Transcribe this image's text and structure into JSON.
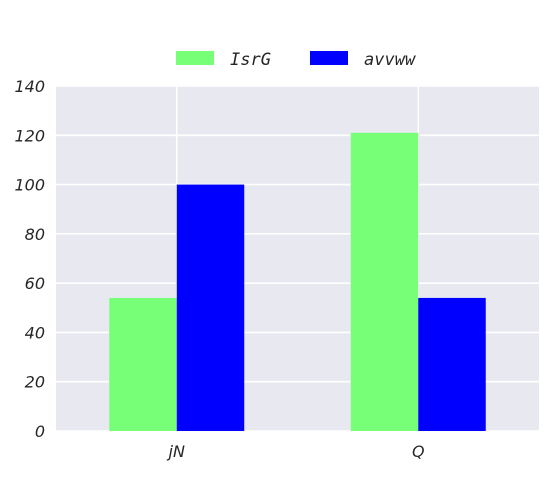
{
  "chart_data": {
    "type": "bar",
    "title": "",
    "xlabel": "",
    "ylabel": "",
    "categories": [
      "jN",
      "Q"
    ],
    "series": [
      {
        "name": "IsrG",
        "values": [
          54,
          121
        ],
        "color": "#77ff77"
      },
      {
        "name": "avvww",
        "values": [
          100,
          54
        ],
        "color": "#0000ff"
      }
    ],
    "ylim": [
      0,
      140
    ],
    "yticks": [
      0,
      20,
      40,
      60,
      80,
      100,
      120,
      140
    ],
    "ytick_labels": [
      "0",
      "20",
      "40",
      "60",
      "80",
      "100",
      "120",
      "140"
    ],
    "grid": true,
    "legend_position": "top-center",
    "plot_background": "#e8e8f0",
    "grid_color": "#ffffff"
  }
}
